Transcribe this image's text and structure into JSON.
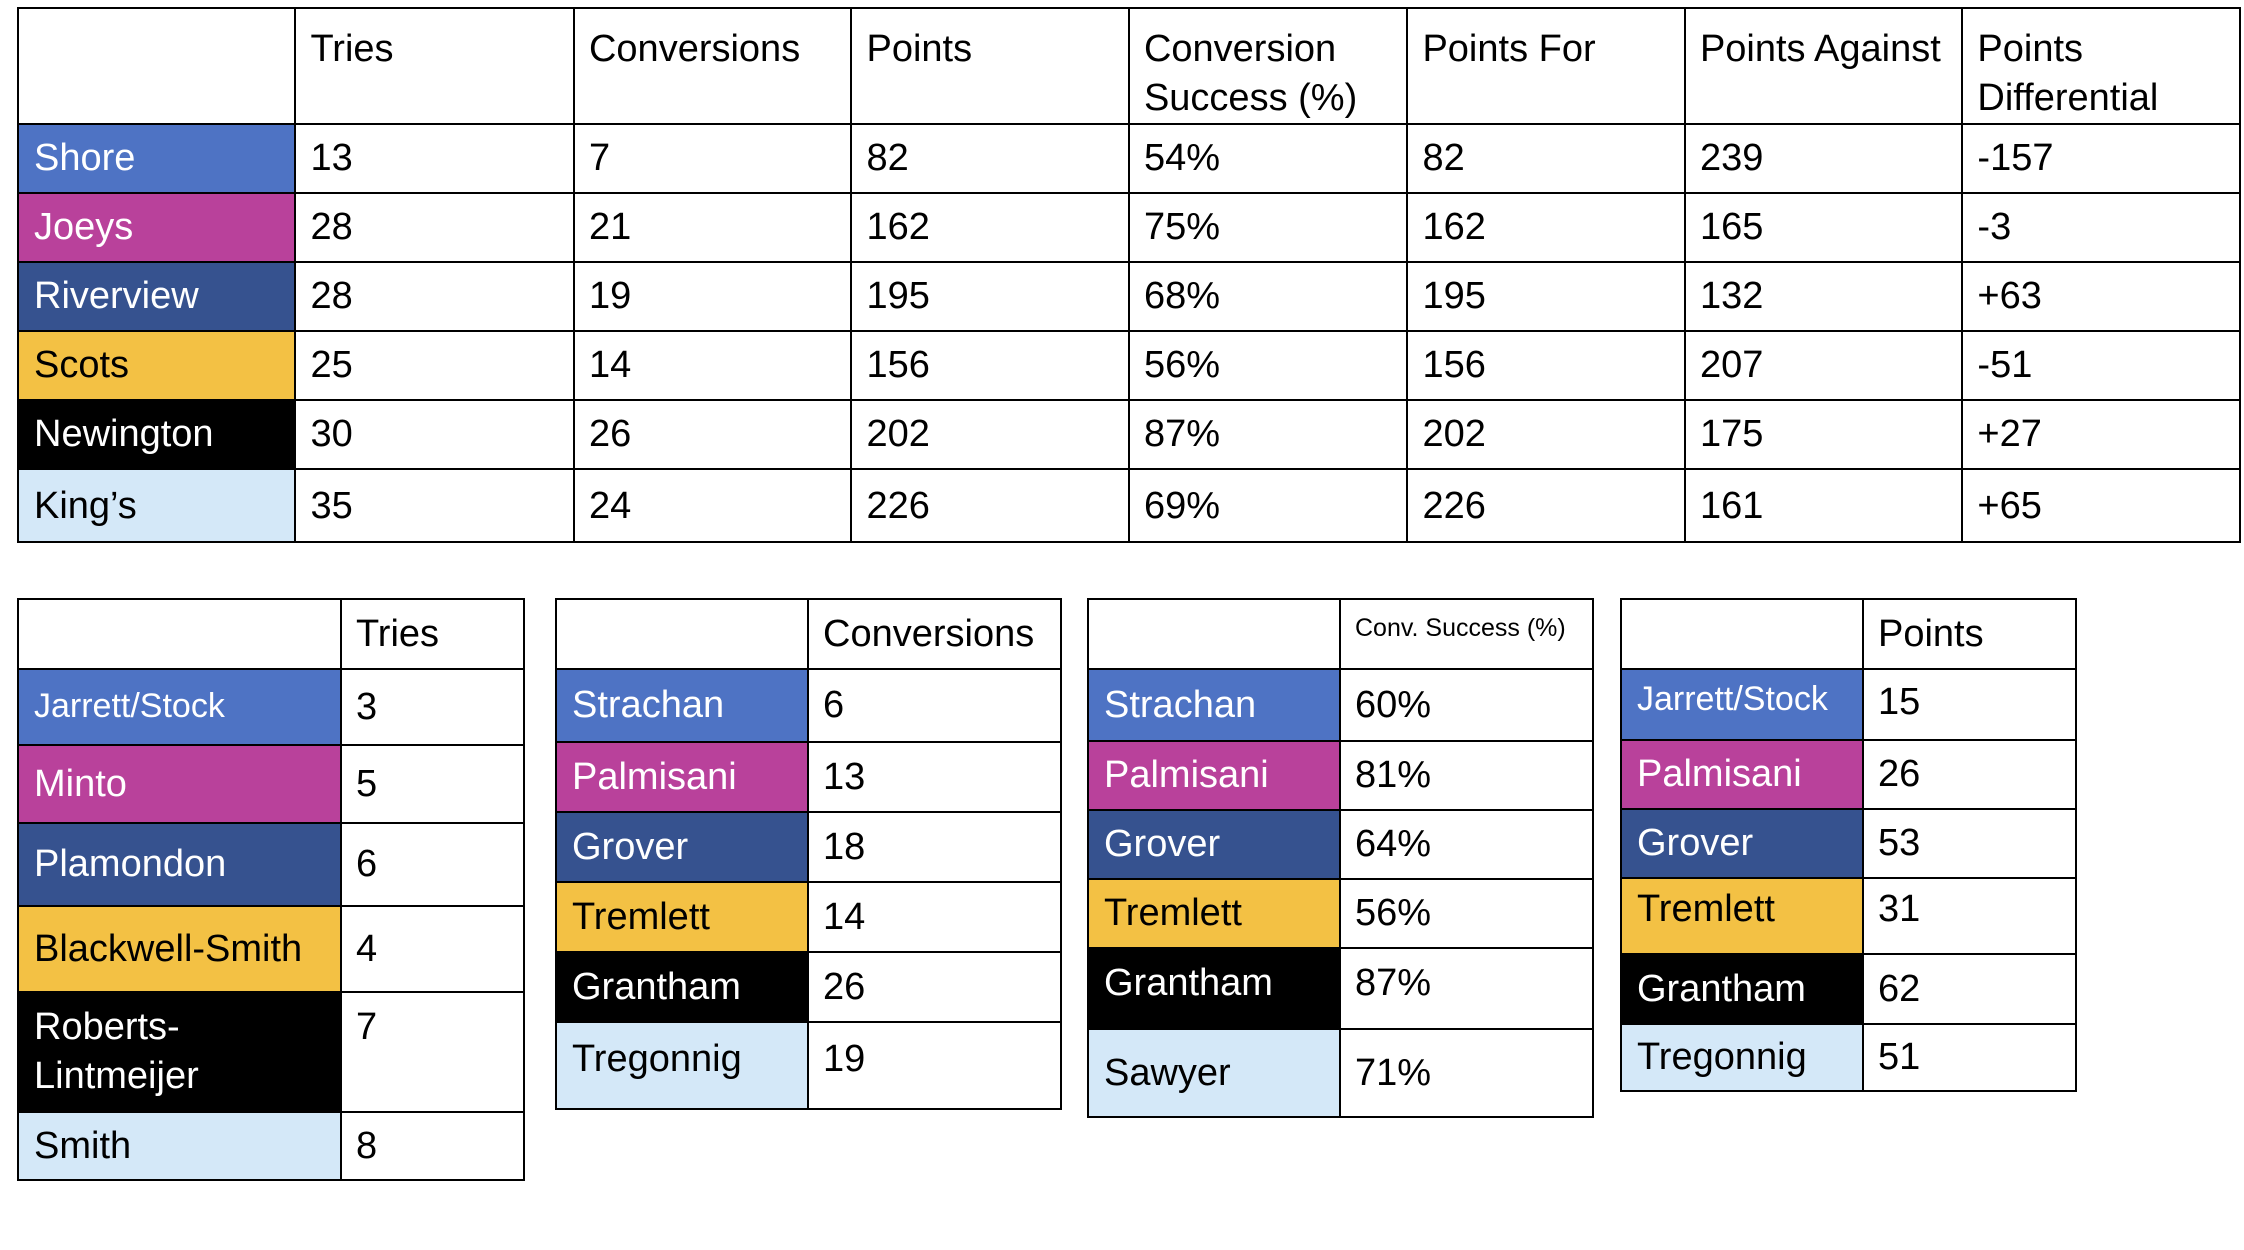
{
  "colors": {
    "shore": "#4e73c4",
    "joeys": "#b9419b",
    "riverview": "#36528f",
    "scots": "#f3c144",
    "newington": "#000000",
    "kings": "#d4e8f8"
  },
  "team_table": {
    "headers": [
      "",
      "Tries",
      "Conversions",
      "Points",
      "Conversion Success (%)",
      "Points For",
      "Points Against",
      "Points Differential"
    ],
    "rows": [
      {
        "team": "Shore",
        "tries": "13",
        "conversions": "7",
        "points": "82",
        "conversion_success": "54%",
        "points_for": "82",
        "points_against": "239",
        "points_differential": "-157"
      },
      {
        "team": "Joeys",
        "tries": "28",
        "conversions": "21",
        "points": "162",
        "conversion_success": "75%",
        "points_for": "162",
        "points_against": "165",
        "points_differential": "-3"
      },
      {
        "team": "Riverview",
        "tries": "28",
        "conversions": "19",
        "points": "195",
        "conversion_success": "68%",
        "points_for": "195",
        "points_against": "132",
        "points_differential": "+63"
      },
      {
        "team": "Scots",
        "tries": "25",
        "conversions": "14",
        "points": "156",
        "conversion_success": "56%",
        "points_for": "156",
        "points_against": "207",
        "points_differential": "-51"
      },
      {
        "team": "Newington",
        "tries": "30",
        "conversions": "26",
        "points": "202",
        "conversion_success": "87%",
        "points_for": "202",
        "points_against": "175",
        "points_differential": "+27"
      },
      {
        "team": "King’s",
        "tries": "35",
        "conversions": "24",
        "points": "226",
        "conversion_success": "69%",
        "points_for": "226",
        "points_against": "161",
        "points_differential": "+65"
      }
    ]
  },
  "tries_table": {
    "header": "Tries",
    "rows": [
      {
        "player": "Jarrett/Stock",
        "value": "3"
      },
      {
        "player": "Minto",
        "value": "5"
      },
      {
        "player": "Plamondon",
        "value": "6"
      },
      {
        "player": "Blackwell-Smith",
        "value": "4"
      },
      {
        "player": "Roberts-Lintmeijer",
        "value": "7"
      },
      {
        "player": "Smith",
        "value": "8"
      }
    ]
  },
  "conversions_table": {
    "header": "Conversions",
    "rows": [
      {
        "player": "Strachan",
        "value": "6"
      },
      {
        "player": "Palmisani",
        "value": "13"
      },
      {
        "player": "Grover",
        "value": "18"
      },
      {
        "player": "Tremlett",
        "value": "14"
      },
      {
        "player": "Grantham",
        "value": "26"
      },
      {
        "player": "Tregonnig",
        "value": "19"
      }
    ]
  },
  "conv_success_table": {
    "header": "Conv. Success (%)",
    "rows": [
      {
        "player": "Strachan",
        "value": "60%"
      },
      {
        "player": "Palmisani",
        "value": "81%"
      },
      {
        "player": "Grover",
        "value": "64%"
      },
      {
        "player": "Tremlett",
        "value": "56%"
      },
      {
        "player": "Grantham",
        "value": "87%"
      },
      {
        "player": "Sawyer",
        "value": "71%"
      }
    ]
  },
  "points_table": {
    "header": "Points",
    "rows": [
      {
        "player": "Jarrett/Stock",
        "value": "15"
      },
      {
        "player": "Palmisani",
        "value": "26"
      },
      {
        "player": "Grover",
        "value": "53"
      },
      {
        "player": "Tremlett",
        "value": "31"
      },
      {
        "player": "Grantham",
        "value": "62"
      },
      {
        "player": "Tregonnig",
        "value": "51"
      }
    ]
  }
}
